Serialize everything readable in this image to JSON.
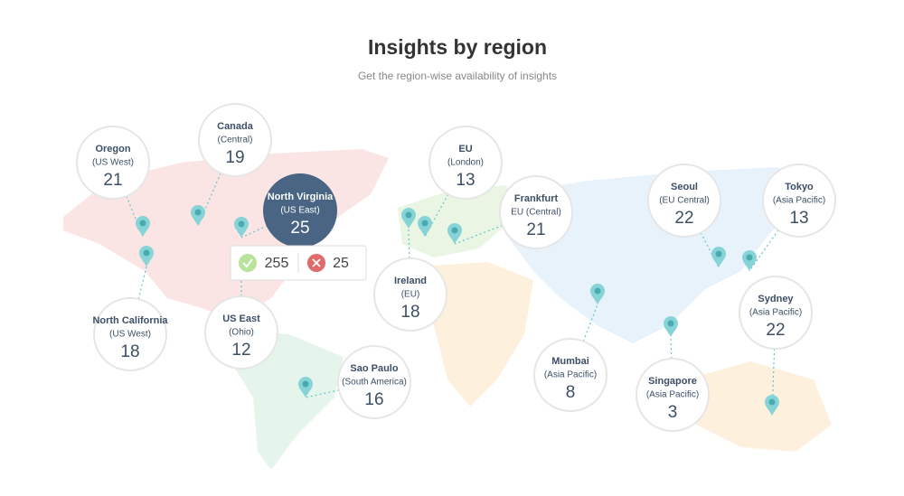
{
  "header": {
    "title": "Insights by region",
    "subtitle": "Get the region-wise availability of insights"
  },
  "regions": [
    {
      "name": "Oregon",
      "zone": "(US West)",
      "count": 21
    },
    {
      "name": "Canada",
      "zone": "(Central)",
      "count": 19
    },
    {
      "name": "North Virginia",
      "zone": "(US East)",
      "count": 25
    },
    {
      "name": "North California",
      "zone": "(US West)",
      "count": 18
    },
    {
      "name": "US East",
      "zone": "(Ohio)",
      "count": 12
    },
    {
      "name": "Sao Paulo",
      "zone": "(South America)",
      "count": 16
    },
    {
      "name": "EU",
      "zone": "(London)",
      "count": 13
    },
    {
      "name": "Frankfurt",
      "zone": "EU (Central)",
      "count": 21
    },
    {
      "name": "Ireland",
      "zone": "(EU)",
      "count": 18
    },
    {
      "name": "Mumbai",
      "zone": "(Asia Pacific)",
      "count": 8
    },
    {
      "name": "Seoul",
      "zone": "(EU Central)",
      "count": 22
    },
    {
      "name": "Tokyo",
      "zone": "(Asia Pacific)",
      "count": 13
    },
    {
      "name": "Sydney",
      "zone": "(Asia Pacific)",
      "count": 22
    },
    {
      "name": "Singapore",
      "zone": "(Asia Pacific)",
      "count": 3
    }
  ],
  "tooltip": {
    "success": 255,
    "failed": 25
  }
}
